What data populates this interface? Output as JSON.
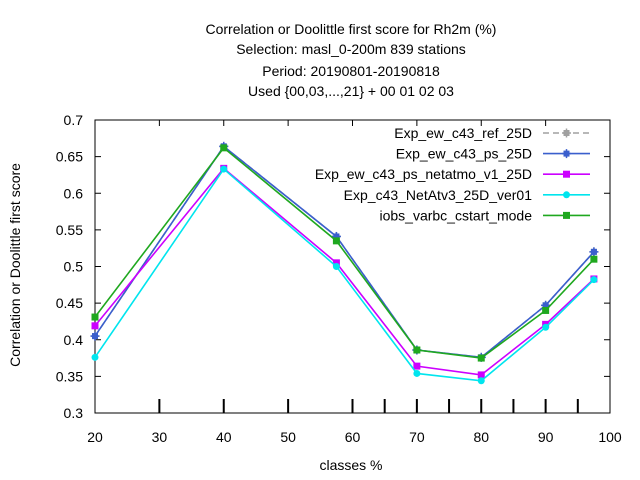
{
  "chart_data": {
    "type": "line",
    "title_lines": [
      "Correlation or Doolittle first score  for Rh2m (%)",
      "Selection: masl_0-200m    839 stations",
      "Period: 20190801-20190818",
      "Used {00,03,...,21} + 00 01 02 03"
    ],
    "xlabel": "classes %",
    "ylabel": "Correlation or Doolittle first score",
    "xlim": [
      20,
      100
    ],
    "ylim": [
      0.3,
      0.7
    ],
    "xticks": [
      20,
      30,
      40,
      50,
      60,
      70,
      80,
      90,
      100
    ],
    "xtick_labels": [
      "20",
      "30",
      "40",
      "50",
      "60",
      "70",
      "80",
      "90",
      "100"
    ],
    "yticks": [
      0.3,
      0.35,
      0.4,
      0.45,
      0.5,
      0.55,
      0.6,
      0.65,
      0.7
    ],
    "ytick_labels": [
      "0.3",
      "0.35",
      "0.4",
      "0.45",
      "0.5",
      "0.55",
      "0.6",
      "0.65",
      "0.7"
    ],
    "inner_tick_x": [
      30,
      40,
      50,
      60,
      65,
      70,
      75,
      80,
      85,
      90,
      95
    ],
    "x": [
      20,
      40,
      57.5,
      70,
      80,
      90,
      97.5
    ],
    "series": [
      {
        "name": "Exp_ew_c43_ref_25D",
        "color": "#a0a0a0",
        "dash": true,
        "marker": "star",
        "values": [
          0.405,
          0.664,
          0.541,
          0.386,
          0.376,
          0.447,
          0.52
        ]
      },
      {
        "name": "Exp_ew_c43_ps_25D",
        "color": "#3a5fcd",
        "dash": false,
        "marker": "star",
        "values": [
          0.405,
          0.664,
          0.541,
          0.386,
          0.376,
          0.447,
          0.52
        ]
      },
      {
        "name": "Exp_ew_c43_ps_netatmo_v1_25D",
        "color": "#cc00ff",
        "dash": false,
        "marker": "square",
        "values": [
          0.419,
          0.634,
          0.505,
          0.364,
          0.352,
          0.421,
          0.483
        ]
      },
      {
        "name": "Exp_c43_NetAtv3_25D_ver01",
        "color": "#00e5ee",
        "dash": false,
        "marker": "circle",
        "values": [
          0.376,
          0.633,
          0.5,
          0.354,
          0.344,
          0.417,
          0.482
        ]
      },
      {
        "name": "iobs_varbc_cstart_mode",
        "color": "#1fa81f",
        "dash": false,
        "marker": "square",
        "values": [
          0.431,
          0.662,
          0.535,
          0.386,
          0.375,
          0.44,
          0.51
        ]
      }
    ],
    "legend_position": "top-right",
    "grid": false
  }
}
